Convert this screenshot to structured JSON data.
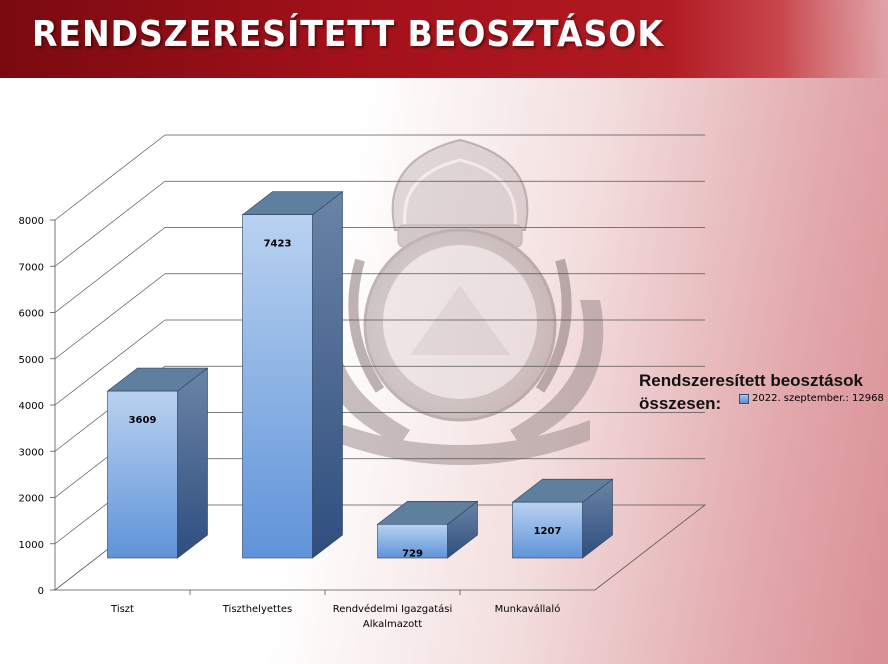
{
  "header": {
    "title": "RENDSZERESÍTETT BEOSZTÁSOK"
  },
  "legend": {
    "title": "Rendszeresített beosztások összesen:",
    "entry": "2022. szeptember.: 12968"
  },
  "colors": {
    "title_bar": "#a3111a",
    "bar_front": "#8fb5e6",
    "bar_side": "#3d5f8f",
    "bar_top": "#5f7f9f"
  },
  "chart_data": {
    "type": "bar",
    "title": "",
    "categories": [
      "Tiszt",
      "Tiszthelyettes",
      "Rendvédelmi Igazgatási Alkalmazott",
      "Munkavállaló"
    ],
    "series": [
      {
        "name": "2022. szeptember.: 12968",
        "values": [
          3609,
          7423,
          729,
          1207
        ]
      }
    ],
    "data_labels": [
      "3609",
      "7423",
      "729",
      "1207"
    ],
    "y_ticks": [
      0,
      1000,
      2000,
      3000,
      4000,
      5000,
      6000,
      7000,
      8000
    ],
    "ylim": [
      0,
      8000
    ],
    "xlabel": "",
    "ylabel": "",
    "grid": true,
    "style": "3d",
    "legend_position": "right"
  }
}
